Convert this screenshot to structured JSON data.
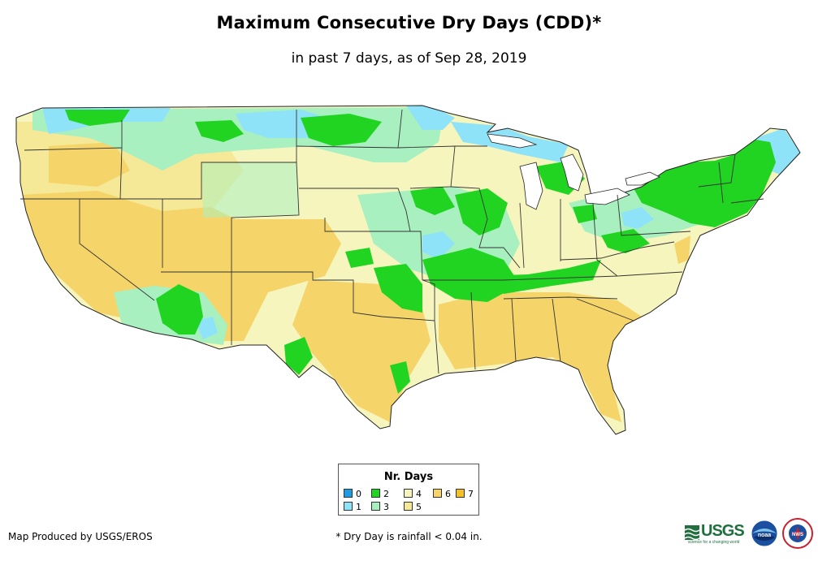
{
  "header": {
    "title": "Maximum Consecutive Dry Days (CDD)*",
    "subtitle": "in past 7 days, as of Sep 28, 2019"
  },
  "map": {
    "region": "Contiguous United States"
  },
  "legend": {
    "title": "Nr. Days",
    "items": [
      {
        "label": "0",
        "color": "#1e9be6"
      },
      {
        "label": "1",
        "color": "#8fe3f8"
      },
      {
        "label": "2",
        "color": "#22d422"
      },
      {
        "label": "3",
        "color": "#a9f0c0"
      },
      {
        "label": "4",
        "color": "#f6f5be"
      },
      {
        "label": "5",
        "color": "#f5e896"
      },
      {
        "label": "6",
        "color": "#f5d46a"
      },
      {
        "label": "7",
        "color": "#f4c02a"
      }
    ]
  },
  "footer": {
    "credit": "Map Produced by USGS/EROS",
    "footnote": "* Dry Day is rainfall < 0.04 in."
  },
  "logos": {
    "usgs_text": "USGS",
    "usgs_tagline": "science for a changing world",
    "noaa_text": "noaa",
    "nws_text": "NWS"
  }
}
